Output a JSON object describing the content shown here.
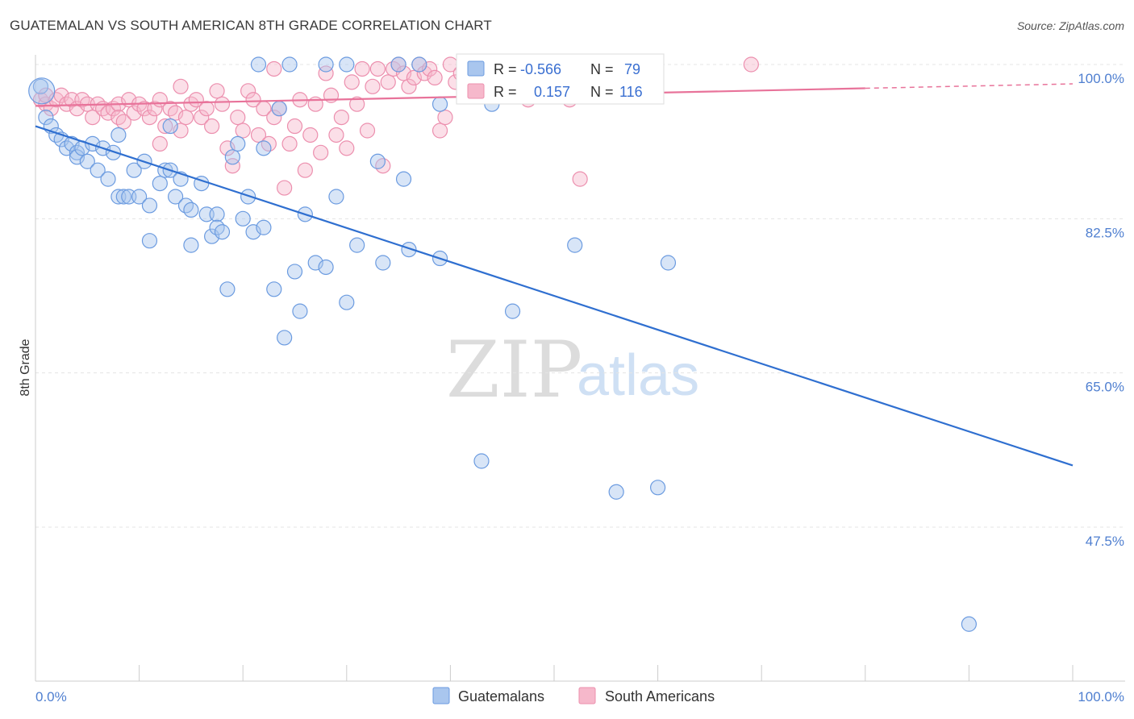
{
  "header": {
    "title": "GUATEMALAN VS SOUTH AMERICAN 8TH GRADE CORRELATION CHART",
    "source": "Source: ZipAtlas.com"
  },
  "watermark": {
    "zip": "ZIP",
    "atlas": "atlas"
  },
  "stats": {
    "guatemalans": {
      "r_label": "R =",
      "r_value": "-0.566",
      "n_label": "N =",
      "n_value": "79"
    },
    "south_americans": {
      "r_label": "R =",
      "r_value": "0.157",
      "n_label": "N =",
      "n_value": "116"
    }
  },
  "legend": {
    "items": [
      "Guatemalans",
      "South Americans"
    ]
  },
  "colors": {
    "blue_fill": "#a9c6ee",
    "blue_stroke": "#6b9be0",
    "blue_line": "#2f6fd0",
    "pink_fill": "#f6b8cb",
    "pink_stroke": "#ec8fae",
    "pink_line": "#e8739a",
    "tick_label": "#4f7fd0"
  },
  "chart_data": {
    "type": "scatter",
    "title": "GUATEMALAN VS SOUTH AMERICAN 8TH GRADE CORRELATION CHART",
    "xlabel": "",
    "ylabel": "8th Grade",
    "xlim": [
      0,
      100
    ],
    "ylim": [
      33,
      101.5
    ],
    "x_tick_labels": [
      "0.0%",
      "100.0%"
    ],
    "y_ticks": [
      47.5,
      65.0,
      82.5,
      100.0
    ],
    "y_tick_labels": [
      "47.5%",
      "65.0%",
      "82.5%",
      "100.0%"
    ],
    "grid": true,
    "legend_position": "bottom-center",
    "series": [
      {
        "name": "Guatemalans",
        "trend": {
          "x": [
            0,
            100
          ],
          "y": [
            93.0,
            54.5
          ]
        },
        "points": [
          [
            0.5,
            97.5
          ],
          [
            1,
            94
          ],
          [
            1.5,
            93
          ],
          [
            2,
            92
          ],
          [
            2.5,
            91.5
          ],
          [
            3,
            90.5
          ],
          [
            3.5,
            91
          ],
          [
            4,
            90
          ],
          [
            4,
            89.5
          ],
          [
            4.5,
            90.5
          ],
          [
            5,
            89
          ],
          [
            5.5,
            91
          ],
          [
            6,
            88
          ],
          [
            6.5,
            90.5
          ],
          [
            7,
            87
          ],
          [
            7.5,
            90
          ],
          [
            8,
            92
          ],
          [
            8,
            85
          ],
          [
            8.5,
            85
          ],
          [
            9,
            85
          ],
          [
            9.5,
            88
          ],
          [
            10,
            85
          ],
          [
            10.5,
            89
          ],
          [
            11,
            80
          ],
          [
            11,
            84
          ],
          [
            12,
            86.5
          ],
          [
            12.5,
            88
          ],
          [
            13,
            88
          ],
          [
            13,
            93
          ],
          [
            13.5,
            85
          ],
          [
            14,
            87
          ],
          [
            14.5,
            84
          ],
          [
            15,
            83.5
          ],
          [
            15,
            79.5
          ],
          [
            16,
            86.5
          ],
          [
            16.5,
            83
          ],
          [
            17,
            80.5
          ],
          [
            17.5,
            83
          ],
          [
            17.5,
            81.5
          ],
          [
            18,
            81
          ],
          [
            18.5,
            74.5
          ],
          [
            19,
            89.5
          ],
          [
            19.5,
            91
          ],
          [
            20,
            82.5
          ],
          [
            20.5,
            85
          ],
          [
            21,
            81
          ],
          [
            21.5,
            100
          ],
          [
            22,
            81.5
          ],
          [
            22,
            90.5
          ],
          [
            23,
            74.5
          ],
          [
            23.5,
            95
          ],
          [
            24,
            69
          ],
          [
            24.5,
            100
          ],
          [
            25,
            76.5
          ],
          [
            25.5,
            72
          ],
          [
            26,
            83
          ],
          [
            27,
            77.5
          ],
          [
            28,
            100
          ],
          [
            28,
            77
          ],
          [
            29,
            85
          ],
          [
            30,
            73
          ],
          [
            30,
            100
          ],
          [
            31,
            79.5
          ],
          [
            33,
            89
          ],
          [
            33.5,
            77.5
          ],
          [
            35,
            100
          ],
          [
            35.5,
            87
          ],
          [
            36,
            79
          ],
          [
            37,
            100
          ],
          [
            39,
            78
          ],
          [
            39,
            95.5
          ],
          [
            43,
            55
          ],
          [
            44,
            95.5
          ],
          [
            46,
            72
          ],
          [
            52,
            79.5
          ],
          [
            56,
            51.5
          ],
          [
            57,
            100
          ],
          [
            60,
            52
          ],
          [
            61,
            77.5
          ],
          [
            90,
            36.5
          ]
        ]
      },
      {
        "name": "South Americans",
        "trend": {
          "x": [
            0,
            80,
            100
          ],
          "y": [
            95.3,
            97.3,
            97.8
          ]
        },
        "points": [
          [
            0.5,
            96
          ],
          [
            1,
            95.5
          ],
          [
            1,
            96.5
          ],
          [
            1.5,
            95
          ],
          [
            2,
            96
          ],
          [
            2.5,
            96.5
          ],
          [
            3,
            95.5
          ],
          [
            3.5,
            96
          ],
          [
            4,
            95
          ],
          [
            4.5,
            96
          ],
          [
            5,
            95.5
          ],
          [
            5.5,
            94
          ],
          [
            6,
            95.5
          ],
          [
            6.5,
            95
          ],
          [
            7,
            94.5
          ],
          [
            7.5,
            95
          ],
          [
            8,
            95.5
          ],
          [
            8,
            94
          ],
          [
            8.5,
            93.5
          ],
          [
            9,
            96
          ],
          [
            9.5,
            94.5
          ],
          [
            10,
            95.5
          ],
          [
            10.5,
            95
          ],
          [
            11,
            94
          ],
          [
            11.5,
            95
          ],
          [
            12,
            91
          ],
          [
            12,
            96
          ],
          [
            12.5,
            93
          ],
          [
            13,
            95
          ],
          [
            13.5,
            94.5
          ],
          [
            14,
            92.5
          ],
          [
            14,
            97.5
          ],
          [
            14.5,
            94
          ],
          [
            15,
            95.5
          ],
          [
            15.5,
            96
          ],
          [
            16,
            94
          ],
          [
            16.5,
            95
          ],
          [
            17,
            93
          ],
          [
            17.5,
            97
          ],
          [
            18,
            95.5
          ],
          [
            18.5,
            90.5
          ],
          [
            19,
            88.5
          ],
          [
            19.5,
            94
          ],
          [
            20,
            92.5
          ],
          [
            20.5,
            97
          ],
          [
            21,
            96
          ],
          [
            21.5,
            92
          ],
          [
            22,
            95
          ],
          [
            22.5,
            91
          ],
          [
            23,
            99.5
          ],
          [
            23,
            94
          ],
          [
            23.5,
            95
          ],
          [
            24,
            86
          ],
          [
            24.5,
            91
          ],
          [
            25,
            93
          ],
          [
            25.5,
            96
          ],
          [
            26,
            88
          ],
          [
            26.5,
            92
          ],
          [
            27,
            95.5
          ],
          [
            27.5,
            90
          ],
          [
            28,
            99
          ],
          [
            28.5,
            96.5
          ],
          [
            29,
            92
          ],
          [
            29.5,
            94
          ],
          [
            30,
            90.5
          ],
          [
            30.5,
            98
          ],
          [
            31,
            95.5
          ],
          [
            31.5,
            99.5
          ],
          [
            32,
            92.5
          ],
          [
            32.5,
            97.5
          ],
          [
            33,
            99.5
          ],
          [
            33.5,
            88.5
          ],
          [
            34,
            98
          ],
          [
            34.5,
            99.5
          ],
          [
            35,
            100
          ],
          [
            35.5,
            99
          ],
          [
            36,
            97.5
          ],
          [
            36.5,
            98.5
          ],
          [
            37,
            100
          ],
          [
            37.5,
            99
          ],
          [
            38,
            99.5
          ],
          [
            38.5,
            98.5
          ],
          [
            39,
            92.5
          ],
          [
            39.5,
            94
          ],
          [
            40,
            100
          ],
          [
            40.5,
            98
          ],
          [
            41,
            99
          ],
          [
            41.5,
            97
          ],
          [
            42,
            100
          ],
          [
            42.5,
            98.5
          ],
          [
            43,
            100
          ],
          [
            43.5,
            99
          ],
          [
            44,
            97.5
          ],
          [
            44.5,
            98
          ],
          [
            45,
            99.5
          ],
          [
            45.5,
            100
          ],
          [
            46,
            97
          ],
          [
            46.5,
            98.5
          ],
          [
            47,
            99
          ],
          [
            47.5,
            96
          ],
          [
            48,
            97.5
          ],
          [
            48.5,
            99.5
          ],
          [
            49,
            98
          ],
          [
            49.5,
            96.5
          ],
          [
            50,
            100
          ],
          [
            50.5,
            97
          ],
          [
            51,
            98
          ],
          [
            51.5,
            96
          ],
          [
            52,
            100
          ],
          [
            52.5,
            87
          ],
          [
            53,
            98.5
          ],
          [
            54,
            97
          ],
          [
            55,
            98
          ],
          [
            56,
            99
          ],
          [
            57,
            96.5
          ],
          [
            58,
            97.5
          ],
          [
            69,
            100
          ]
        ]
      }
    ]
  }
}
